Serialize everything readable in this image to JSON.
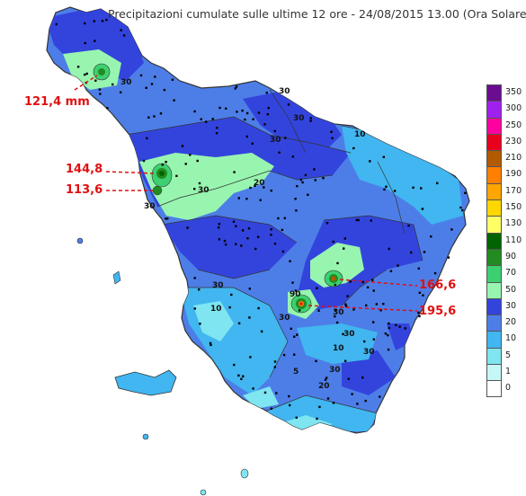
{
  "title": "Precipitazioni cumulate sulle ultime 12 ore - 24/08/2015 13.00 (Ora Solare)",
  "callouts": [
    {
      "id": "c1",
      "text": "121,4 mm"
    },
    {
      "id": "c2",
      "text": "144,8"
    },
    {
      "id": "c3",
      "text": "113,6"
    },
    {
      "id": "c4",
      "text": "166,6"
    },
    {
      "id": "c5",
      "text": "195,6"
    }
  ],
  "contour_labels": [
    "30",
    "30",
    "30",
    "30",
    "10",
    "10",
    "30",
    "30",
    "30",
    "20",
    "30",
    "30",
    "30",
    "30",
    "30",
    "20",
    "10",
    "5",
    "90"
  ],
  "legend": [
    {
      "label": "350",
      "color": "#6a0d91"
    },
    {
      "label": "300",
      "color": "#a020f0"
    },
    {
      "label": "250",
      "color": "#ff00a0"
    },
    {
      "label": "230",
      "color": "#e8001e"
    },
    {
      "label": "210",
      "color": "#b35a00"
    },
    {
      "label": "190",
      "color": "#ff7f00"
    },
    {
      "label": "170",
      "color": "#ffa500"
    },
    {
      "label": "150",
      "color": "#ffd700"
    },
    {
      "label": "130",
      "color": "#ffff66"
    },
    {
      "label": "110",
      "color": "#006400"
    },
    {
      "label": "90",
      "color": "#228b22"
    },
    {
      "label": "70",
      "color": "#3cd070"
    },
    {
      "label": "50",
      "color": "#98f5b0"
    },
    {
      "label": "30",
      "color": "#3344dd"
    },
    {
      "label": "20",
      "color": "#4d7ee8"
    },
    {
      "label": "10",
      "color": "#41b6f0"
    },
    {
      "label": "5",
      "color": "#7fe5f0"
    },
    {
      "label": "1",
      "color": "#c5f7f7"
    },
    {
      "label": "0",
      "color": "#ffffff"
    }
  ]
}
